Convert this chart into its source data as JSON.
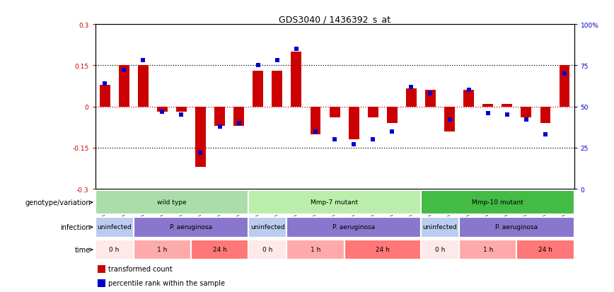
{
  "title": "GDS3040 / 1436392_s_at",
  "samples": [
    "GSM196062",
    "GSM196063",
    "GSM196064",
    "GSM196065",
    "GSM196066",
    "GSM196067",
    "GSM196068",
    "GSM196069",
    "GSM196070",
    "GSM196071",
    "GSM196072",
    "GSM196073",
    "GSM196074",
    "GSM196075",
    "GSM196076",
    "GSM196077",
    "GSM196078",
    "GSM196079",
    "GSM196080",
    "GSM196081",
    "GSM196082",
    "GSM196083",
    "GSM196084",
    "GSM196085",
    "GSM196086"
  ],
  "red_values": [
    0.08,
    0.15,
    0.15,
    -0.02,
    -0.02,
    -0.22,
    -0.07,
    -0.07,
    0.13,
    0.13,
    0.2,
    -0.1,
    -0.04,
    -0.12,
    -0.04,
    -0.06,
    0.065,
    0.06,
    -0.09,
    0.06,
    0.01,
    0.01,
    -0.04,
    -0.06,
    0.15
  ],
  "blue_values_pct": [
    64,
    72,
    78,
    47,
    45,
    22,
    38,
    40,
    75,
    78,
    85,
    35,
    30,
    27,
    30,
    35,
    62,
    58,
    42,
    60,
    46,
    45,
    42,
    33,
    70
  ],
  "ylim": [
    -0.3,
    0.3
  ],
  "yticks_left": [
    -0.3,
    -0.15,
    0.0,
    0.15,
    0.3
  ],
  "yticks_right_pct": [
    0,
    25,
    50,
    75,
    100
  ],
  "red_color": "#CC0000",
  "blue_color": "#0000CC",
  "zero_line_color": "#CC0000",
  "ref_line_color": "black",
  "genotype_groups": [
    {
      "label": "wild type",
      "start": 0,
      "end": 8,
      "color": "#AADDAA"
    },
    {
      "label": "Mmp-7 mutant",
      "start": 8,
      "end": 17,
      "color": "#BBEEAA"
    },
    {
      "label": "Mmp-10 mutant",
      "start": 17,
      "end": 25,
      "color": "#44BB44"
    }
  ],
  "infection_groups": [
    {
      "label": "uninfected",
      "start": 0,
      "end": 2,
      "color": "#BBCCEE"
    },
    {
      "label": "P. aeruginosa",
      "start": 2,
      "end": 8,
      "color": "#8877CC"
    },
    {
      "label": "uninfected",
      "start": 8,
      "end": 10,
      "color": "#BBCCEE"
    },
    {
      "label": "P. aeruginosa",
      "start": 10,
      "end": 17,
      "color": "#8877CC"
    },
    {
      "label": "uninfected",
      "start": 17,
      "end": 19,
      "color": "#BBCCEE"
    },
    {
      "label": "P. aeruginosa",
      "start": 19,
      "end": 25,
      "color": "#8877CC"
    }
  ],
  "time_groups": [
    {
      "label": "0 h",
      "start": 0,
      "end": 2,
      "color": "#FFE8E8"
    },
    {
      "label": "1 h",
      "start": 2,
      "end": 5,
      "color": "#FFAAAA"
    },
    {
      "label": "24 h",
      "start": 5,
      "end": 8,
      "color": "#FF7777"
    },
    {
      "label": "0 h",
      "start": 8,
      "end": 10,
      "color": "#FFE8E8"
    },
    {
      "label": "1 h",
      "start": 10,
      "end": 13,
      "color": "#FFAAAA"
    },
    {
      "label": "24 h",
      "start": 13,
      "end": 17,
      "color": "#FF7777"
    },
    {
      "label": "0 h",
      "start": 17,
      "end": 19,
      "color": "#FFE8E8"
    },
    {
      "label": "1 h",
      "start": 19,
      "end": 22,
      "color": "#FFAAAA"
    },
    {
      "label": "24 h",
      "start": 22,
      "end": 25,
      "color": "#FF7777"
    }
  ],
  "row_labels": [
    "genotype/variation",
    "infection",
    "time"
  ],
  "legend_labels": [
    "transformed count",
    "percentile rank within the sample"
  ],
  "legend_colors": [
    "#CC0000",
    "#0000CC"
  ],
  "bar_width": 0.55,
  "dot_size": 16,
  "title_fontsize": 9,
  "tick_fontsize": 6.5,
  "sample_fontsize": 5.0,
  "annot_fontsize": 6.5,
  "row_label_fontsize": 7.0,
  "legend_fontsize": 7.0
}
